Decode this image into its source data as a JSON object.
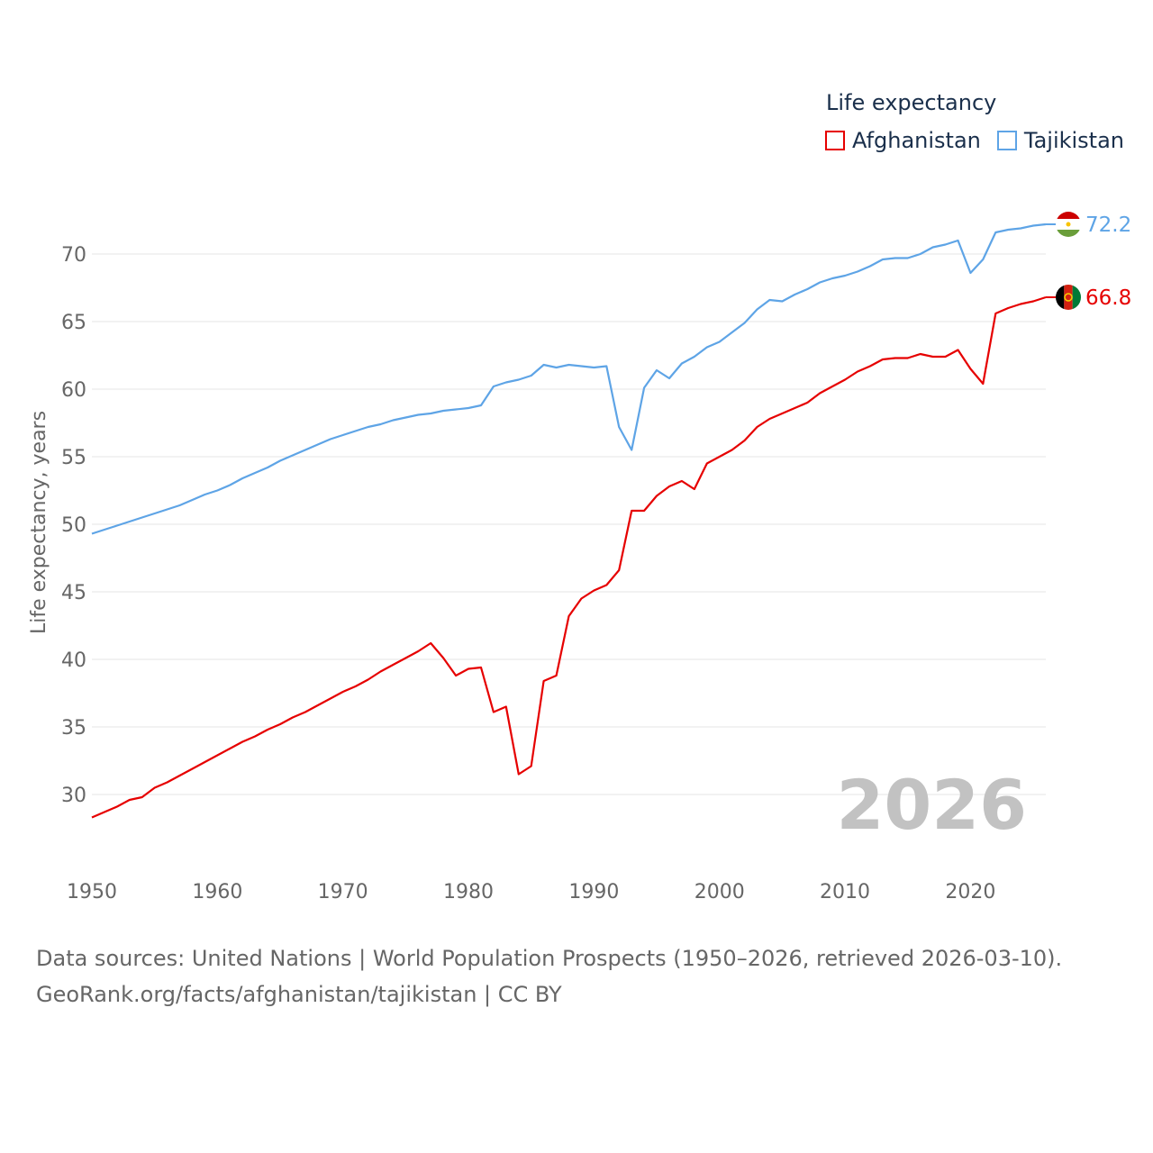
{
  "chart_data": {
    "type": "line",
    "title": "Life expectancy",
    "xlabel": "",
    "ylabel": "Life expectancy, years",
    "xlim": [
      1950,
      2026
    ],
    "ylim": [
      26,
      74
    ],
    "yticks": [
      30,
      35,
      40,
      45,
      50,
      55,
      60,
      65,
      70
    ],
    "xticks": [
      1950,
      1960,
      1970,
      1980,
      1990,
      2000,
      2010,
      2020
    ],
    "year_label": "2026",
    "x": [
      1950,
      1951,
      1952,
      1953,
      1954,
      1955,
      1956,
      1957,
      1958,
      1959,
      1960,
      1961,
      1962,
      1963,
      1964,
      1965,
      1966,
      1967,
      1968,
      1969,
      1970,
      1971,
      1972,
      1973,
      1974,
      1975,
      1976,
      1977,
      1978,
      1979,
      1980,
      1981,
      1982,
      1983,
      1984,
      1985,
      1986,
      1987,
      1988,
      1989,
      1990,
      1991,
      1992,
      1993,
      1994,
      1995,
      1996,
      1997,
      1998,
      1999,
      2000,
      2001,
      2002,
      2003,
      2004,
      2005,
      2006,
      2007,
      2008,
      2009,
      2010,
      2011,
      2012,
      2013,
      2014,
      2015,
      2016,
      2017,
      2018,
      2019,
      2020,
      2021,
      2022,
      2023,
      2024,
      2025,
      2026
    ],
    "series": [
      {
        "name": "Afghanistan",
        "color": "#e60000",
        "end_label": "66.8",
        "flag": "afghanistan-flag-icon",
        "values": [
          28.3,
          28.7,
          29.1,
          29.6,
          29.8,
          30.5,
          30.9,
          31.4,
          31.9,
          32.4,
          32.9,
          33.4,
          33.9,
          34.3,
          34.8,
          35.2,
          35.7,
          36.1,
          36.6,
          37.1,
          37.6,
          38.0,
          38.5,
          39.1,
          39.6,
          40.1,
          40.6,
          41.2,
          40.1,
          38.8,
          39.3,
          39.4,
          36.1,
          36.5,
          31.5,
          32.1,
          38.4,
          38.8,
          43.2,
          44.5,
          45.1,
          45.5,
          46.6,
          51.0,
          51.0,
          52.1,
          52.8,
          53.2,
          52.6,
          54.5,
          55.0,
          55.5,
          56.2,
          57.2,
          57.8,
          58.2,
          58.6,
          59.0,
          59.7,
          60.2,
          60.7,
          61.3,
          61.7,
          62.2,
          62.3,
          62.3,
          62.6,
          62.4,
          62.4,
          62.9,
          61.5,
          60.4,
          65.6,
          66.0,
          66.3,
          66.5,
          66.8
        ]
      },
      {
        "name": "Tajikistan",
        "color": "#5ea4e6",
        "end_label": "72.2",
        "flag": "tajikistan-flag-icon",
        "values": [
          49.3,
          49.6,
          49.9,
          50.2,
          50.5,
          50.8,
          51.1,
          51.4,
          51.8,
          52.2,
          52.5,
          52.9,
          53.4,
          53.8,
          54.2,
          54.7,
          55.1,
          55.5,
          55.9,
          56.3,
          56.6,
          56.9,
          57.2,
          57.4,
          57.7,
          57.9,
          58.1,
          58.2,
          58.4,
          58.5,
          58.6,
          58.8,
          60.2,
          60.5,
          60.7,
          61.0,
          61.8,
          61.6,
          61.8,
          61.7,
          61.6,
          61.7,
          57.2,
          55.5,
          60.1,
          61.4,
          60.8,
          61.9,
          62.4,
          63.1,
          63.5,
          64.2,
          64.9,
          65.9,
          66.6,
          66.5,
          67.0,
          67.4,
          67.9,
          68.2,
          68.4,
          68.7,
          69.1,
          69.6,
          69.7,
          69.7,
          70.0,
          70.5,
          70.7,
          71.0,
          68.6,
          69.6,
          71.6,
          71.8,
          71.9,
          72.1,
          72.2
        ]
      }
    ]
  },
  "legend": {
    "title": "Life expectancy",
    "items": [
      {
        "label": "Afghanistan",
        "color": "#e60000"
      },
      {
        "label": "Tajikistan",
        "color": "#5ea4e6"
      }
    ]
  },
  "footer": {
    "line1": "Data sources: United Nations | World Population Prospects (1950–2026, retrieved 2026-03-10).",
    "line2": "GeoRank.org/facts/afghanistan/tajikistan | CC BY"
  }
}
